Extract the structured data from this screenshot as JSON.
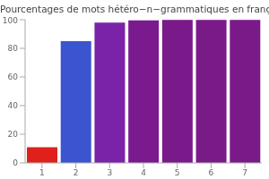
{
  "chart_data": {
    "type": "bar",
    "title": "Pourcentages de mots hétéro−n−grammatiques en français",
    "categories": [
      "1",
      "2",
      "3",
      "4",
      "5",
      "6",
      "7"
    ],
    "values": [
      11,
      85,
      98,
      99.5,
      99.8,
      99.9,
      99.9
    ],
    "colors": [
      "#e0201b",
      "#3b54d0",
      "#7a22a8",
      "#7a1a8e",
      "#7a1a8a",
      "#7a1a88",
      "#7a1a88"
    ],
    "ylim": [
      0,
      100
    ],
    "yticks": [
      0,
      20,
      40,
      60,
      80,
      100
    ],
    "grid": false
  }
}
